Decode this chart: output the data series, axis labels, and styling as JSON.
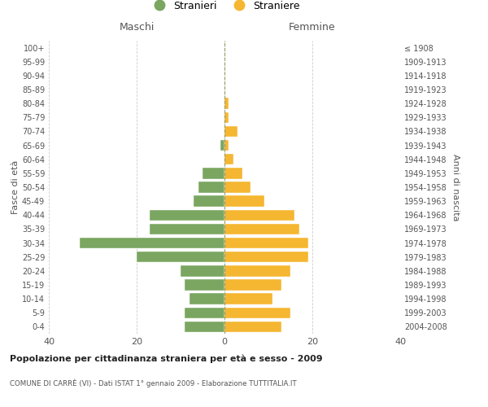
{
  "age_groups": [
    "0-4",
    "5-9",
    "10-14",
    "15-19",
    "20-24",
    "25-29",
    "30-34",
    "35-39",
    "40-44",
    "45-49",
    "50-54",
    "55-59",
    "60-64",
    "65-69",
    "70-74",
    "75-79",
    "80-84",
    "85-89",
    "90-94",
    "95-99",
    "100+"
  ],
  "birth_years": [
    "2004-2008",
    "1999-2003",
    "1994-1998",
    "1989-1993",
    "1984-1988",
    "1979-1983",
    "1974-1978",
    "1969-1973",
    "1964-1968",
    "1959-1963",
    "1954-1958",
    "1949-1953",
    "1944-1948",
    "1939-1943",
    "1934-1938",
    "1929-1933",
    "1924-1928",
    "1919-1923",
    "1914-1918",
    "1909-1913",
    "≤ 1908"
  ],
  "maschi": [
    9,
    9,
    8,
    9,
    10,
    20,
    33,
    17,
    17,
    7,
    6,
    5,
    0,
    1,
    0,
    0,
    0,
    0,
    0,
    0,
    0
  ],
  "femmine": [
    13,
    15,
    11,
    13,
    15,
    19,
    19,
    17,
    16,
    9,
    6,
    4,
    2,
    1,
    3,
    1,
    1,
    0,
    0,
    0,
    0
  ],
  "maschi_color": "#7aa661",
  "femmine_color": "#f5b731",
  "background_color": "#ffffff",
  "grid_color": "#cccccc",
  "title": "Popolazione per cittadinanza straniera per età e sesso - 2009",
  "subtitle": "COMUNE DI CARRÈ (VI) - Dati ISTAT 1° gennaio 2009 - Elaborazione TUTTITALIA.IT",
  "ylabel_left": "Fasce di età",
  "ylabel_right": "Anni di nascita",
  "xlabel_left": "Maschi",
  "xlabel_right": "Femmine",
  "legend_stranieri": "Stranieri",
  "legend_straniere": "Straniere",
  "xlim": 40
}
